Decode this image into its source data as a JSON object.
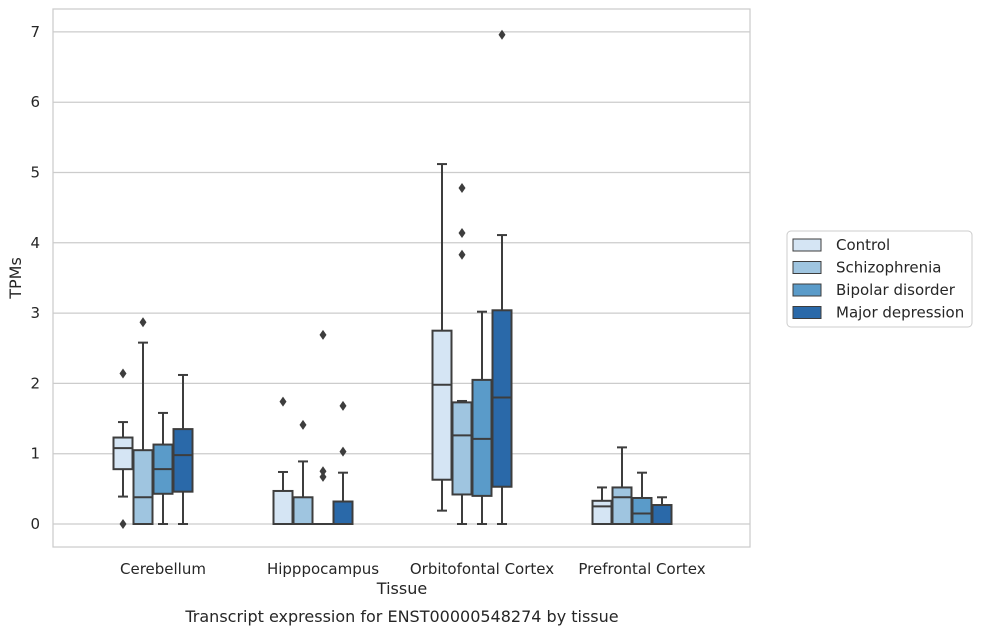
{
  "chart_data": {
    "type": "boxplot",
    "title": "Transcript expression for ENST00000548274 by tissue",
    "xlabel": "Tissue",
    "ylabel": "TPMs",
    "ylim": [
      -0.33,
      7.33
    ],
    "yticks": [
      0,
      1,
      2,
      3,
      4,
      5,
      6,
      7
    ],
    "grid": "horizontal",
    "legend_position": "right",
    "categories": [
      "Cerebellum",
      "Hipppocampus",
      "Orbitofontal Cortex",
      "Prefrontal Cortex"
    ],
    "series": [
      {
        "name": "Control",
        "color": "#d5e5f4",
        "boxes": [
          {
            "whislo": 0.39,
            "q1": 0.78,
            "med": 1.08,
            "q3": 1.23,
            "whishi": 1.45,
            "fliers": [
              2.14,
              0.0
            ]
          },
          {
            "whislo": 0.0,
            "q1": 0.0,
            "med": 0.0,
            "q3": 0.47,
            "whishi": 0.74,
            "fliers": [
              1.74
            ]
          },
          {
            "whislo": 0.19,
            "q1": 0.63,
            "med": 1.98,
            "q3": 2.75,
            "whishi": 5.12,
            "fliers": []
          },
          {
            "whislo": 0.0,
            "q1": 0.0,
            "med": 0.25,
            "q3": 0.33,
            "whishi": 0.52,
            "fliers": []
          }
        ]
      },
      {
        "name": "Schizophrenia",
        "color": "#9fc5e0",
        "boxes": [
          {
            "whislo": 0.0,
            "q1": 0.0,
            "med": 0.38,
            "q3": 1.05,
            "whishi": 2.58,
            "fliers": [
              2.87
            ]
          },
          {
            "whislo": 0.0,
            "q1": 0.0,
            "med": 0.0,
            "q3": 0.38,
            "whishi": 0.89,
            "fliers": [
              1.41
            ]
          },
          {
            "whislo": 0.0,
            "q1": 0.42,
            "med": 1.26,
            "q3": 1.73,
            "whishi": 1.75,
            "fliers": [
              4.78,
              4.14,
              3.83
            ]
          },
          {
            "whislo": 0.0,
            "q1": 0.0,
            "med": 0.38,
            "q3": 0.52,
            "whishi": 1.09,
            "fliers": []
          }
        ]
      },
      {
        "name": "Bipolar disorder",
        "color": "#5a9bc9",
        "boxes": [
          {
            "whislo": 0.0,
            "q1": 0.43,
            "med": 0.78,
            "q3": 1.13,
            "whishi": 1.58,
            "fliers": []
          },
          {
            "whislo": 0.0,
            "q1": 0.0,
            "med": 0.0,
            "q3": 0.0,
            "whishi": 0.0,
            "fliers": [
              2.69,
              0.75,
              0.67
            ]
          },
          {
            "whislo": 0.0,
            "q1": 0.4,
            "med": 1.21,
            "q3": 2.05,
            "whishi": 3.02,
            "fliers": []
          },
          {
            "whislo": 0.0,
            "q1": 0.0,
            "med": 0.15,
            "q3": 0.37,
            "whishi": 0.73,
            "fliers": []
          }
        ]
      },
      {
        "name": "Major depression",
        "color": "#2a69a9",
        "boxes": [
          {
            "whislo": 0.0,
            "q1": 0.46,
            "med": 0.98,
            "q3": 1.35,
            "whishi": 2.12,
            "fliers": []
          },
          {
            "whislo": 0.0,
            "q1": 0.0,
            "med": 0.0,
            "q3": 0.32,
            "whishi": 0.73,
            "fliers": [
              1.68,
              1.03
            ]
          },
          {
            "whislo": 0.0,
            "q1": 0.53,
            "med": 1.8,
            "q3": 3.04,
            "whishi": 4.11,
            "fliers": [
              6.96
            ]
          },
          {
            "whislo": 0.0,
            "q1": 0.0,
            "med": 0.0,
            "q3": 0.27,
            "whishi": 0.38,
            "fliers": []
          }
        ]
      }
    ]
  }
}
